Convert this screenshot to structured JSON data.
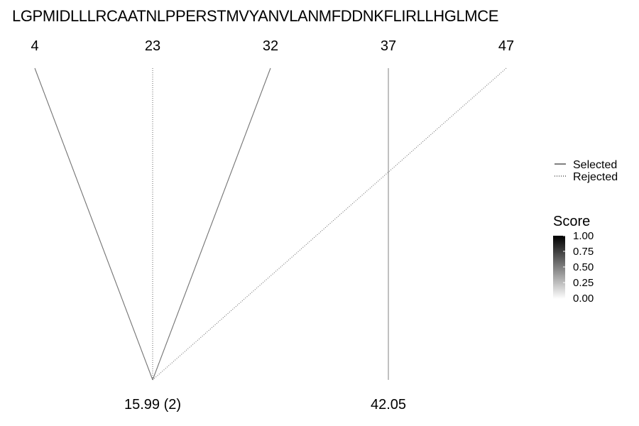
{
  "sequence": "LGPMIDLLLRCAATNLPPERSTMVYANVLANMFDDNKFLIRLLHGLMCE",
  "positions": [
    {
      "label": "4",
      "value": 4
    },
    {
      "label": "23",
      "value": 23
    },
    {
      "label": "32",
      "value": 32
    },
    {
      "label": "37",
      "value": 37
    },
    {
      "label": "47",
      "value": 47
    }
  ],
  "masses": [
    {
      "label": "15.99 (2)",
      "slot": 23
    },
    {
      "label": "42.05",
      "slot": 37
    }
  ],
  "links": [
    {
      "from_position": 4,
      "to_mass": 0,
      "status": "selected",
      "score": 0.55
    },
    {
      "from_position": 23,
      "to_mass": 0,
      "status": "rejected",
      "score": 0.55
    },
    {
      "from_position": 32,
      "to_mass": 0,
      "status": "selected",
      "score": 0.55
    },
    {
      "from_position": 47,
      "to_mass": 0,
      "status": "rejected",
      "score": 0.55
    },
    {
      "from_position": 37,
      "to_mass": 1,
      "status": "selected",
      "score": 0.45
    }
  ],
  "legend": {
    "selected_label": "Selected",
    "rejected_label": "Rejected"
  },
  "score_scale": {
    "title": "Score",
    "ticks": [
      "1.00",
      "0.75",
      "0.50",
      "0.25",
      "0.00"
    ],
    "low_color": "#ffffff",
    "high_color": "#000000"
  },
  "colors": {
    "line_base": "#000000"
  }
}
